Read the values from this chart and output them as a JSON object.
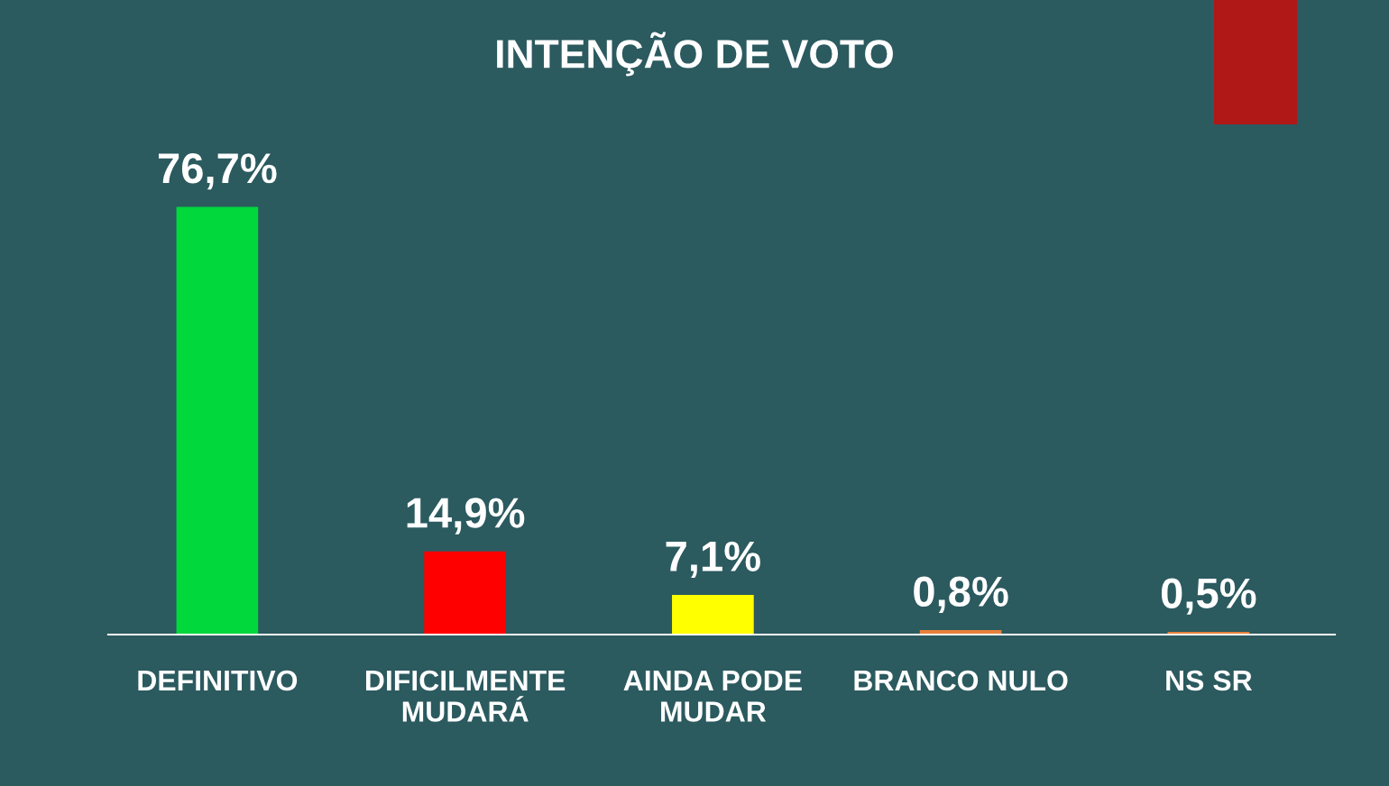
{
  "chart_data": {
    "type": "bar",
    "title": "INTENÇÃO DE VOTO",
    "categories": [
      "DEFINITIVO",
      "DIFICILMENTE\nMUDARÁ",
      "AINDA PODE\nMUDAR",
      "BRANCO NULO",
      "NS SR"
    ],
    "values": [
      76.7,
      14.9,
      7.1,
      0.8,
      0.5
    ],
    "colors": [
      "#00d83c",
      "#ff0000",
      "#ffff00",
      "#e8803a",
      "#e8803a"
    ],
    "value_labels": [
      "76,7%",
      "14,9%",
      "7,1%",
      "0,8%",
      "0,5%"
    ],
    "grid": false,
    "legend": false
  }
}
